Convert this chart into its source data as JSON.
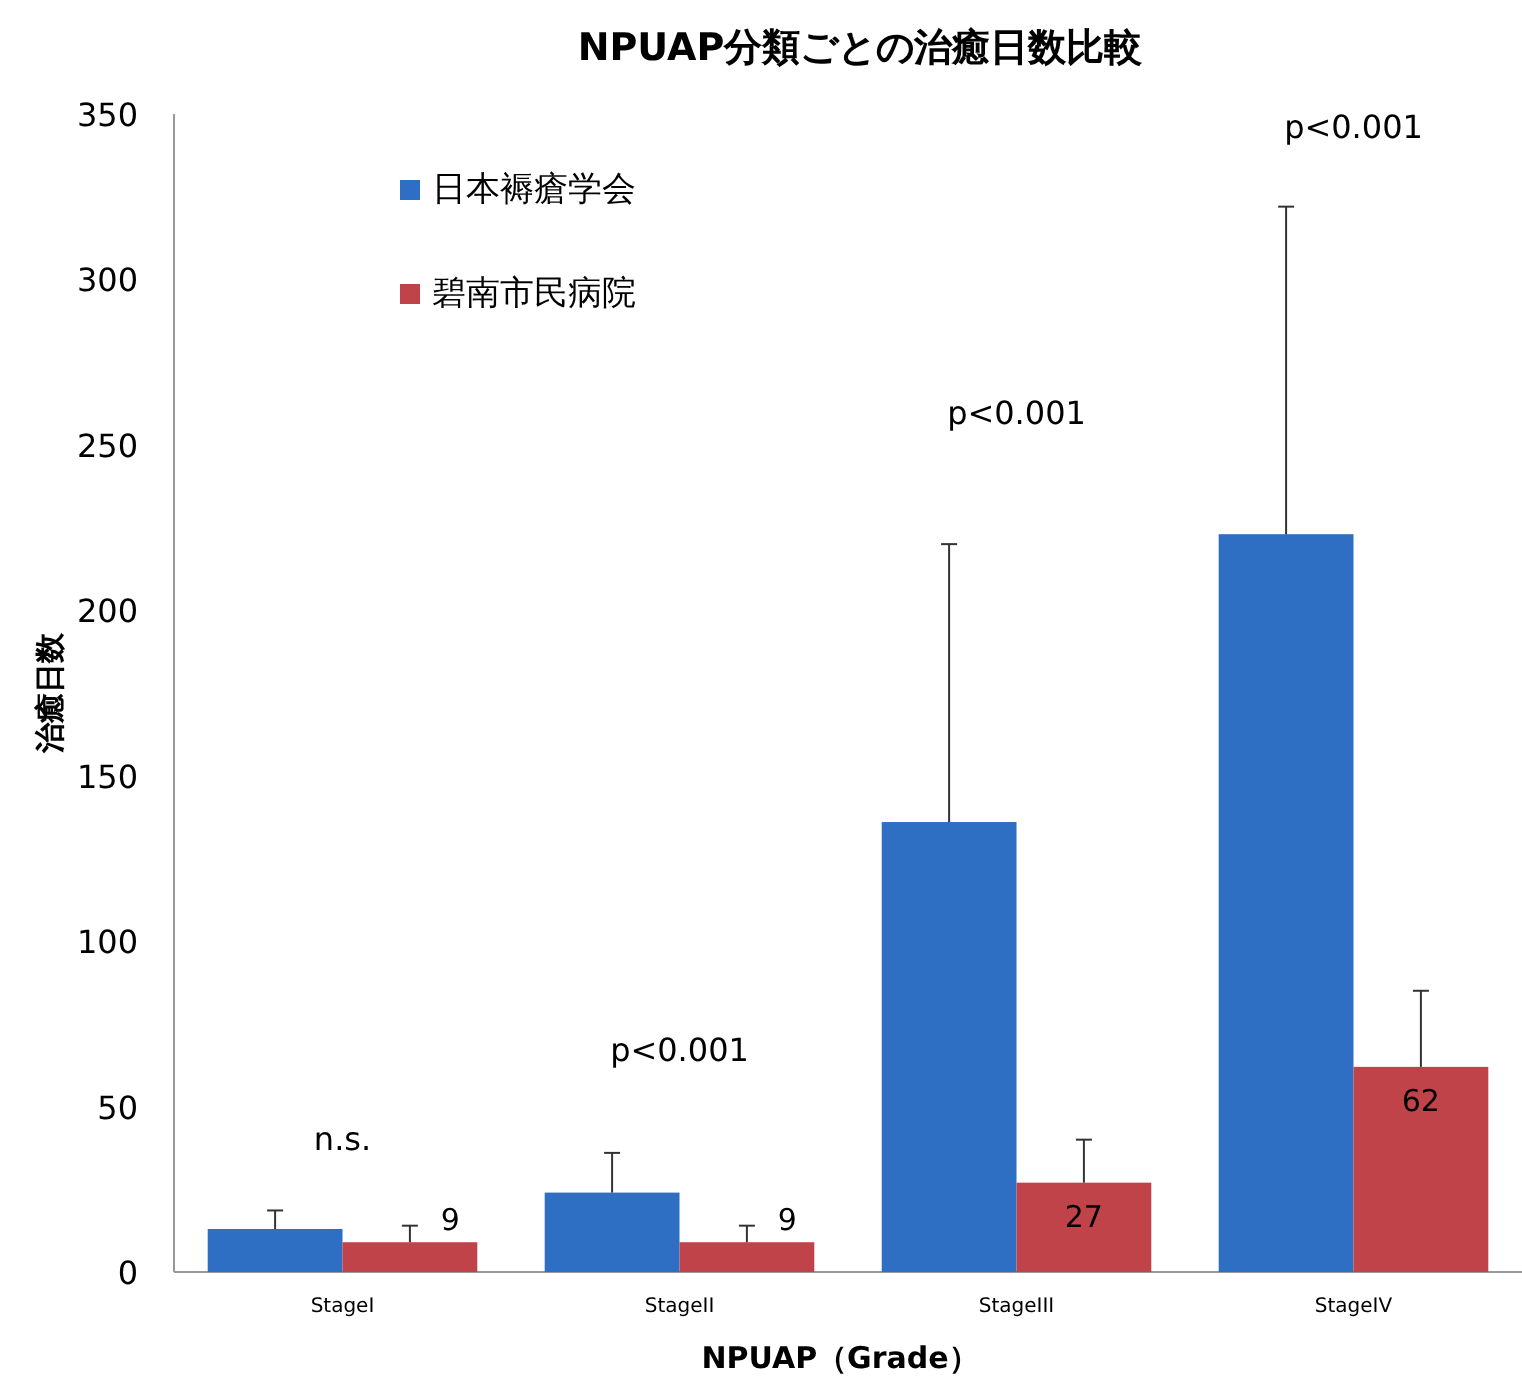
{
  "chart_data": {
    "type": "bar",
    "title": "NPUAP分類ごとの治癒日数比較",
    "xlabel": "NPUAP（Grade）",
    "ylabel": "治癒日数",
    "categories": [
      "StageI",
      "StageII",
      "StageIII",
      "StageIV"
    ],
    "series": [
      {
        "name": "日本褥瘡学会",
        "color": "#2e6fc4",
        "values": [
          13,
          24,
          136,
          223
        ],
        "errors": [
          [
            13,
            18.6
          ],
          [
            24,
            36
          ],
          [
            136,
            220
          ],
          [
            223,
            322
          ]
        ]
      },
      {
        "name": "碧南市民病院",
        "color": "#c0434a",
        "values": [
          9,
          9,
          27,
          62
        ],
        "errors": [
          [
            9,
            14
          ],
          [
            9,
            14
          ],
          [
            27,
            40
          ],
          [
            62,
            85
          ]
        ],
        "value_labels": [
          "9",
          "9",
          "27",
          "62"
        ]
      }
    ],
    "ylim": [
      0,
      350
    ],
    "yticks": [
      0,
      50,
      100,
      150,
      200,
      250,
      300,
      350
    ],
    "legend": "top left",
    "annotations": [
      "n.s.",
      "p<0.001",
      "p<0.001",
      "p<0.001"
    ]
  }
}
